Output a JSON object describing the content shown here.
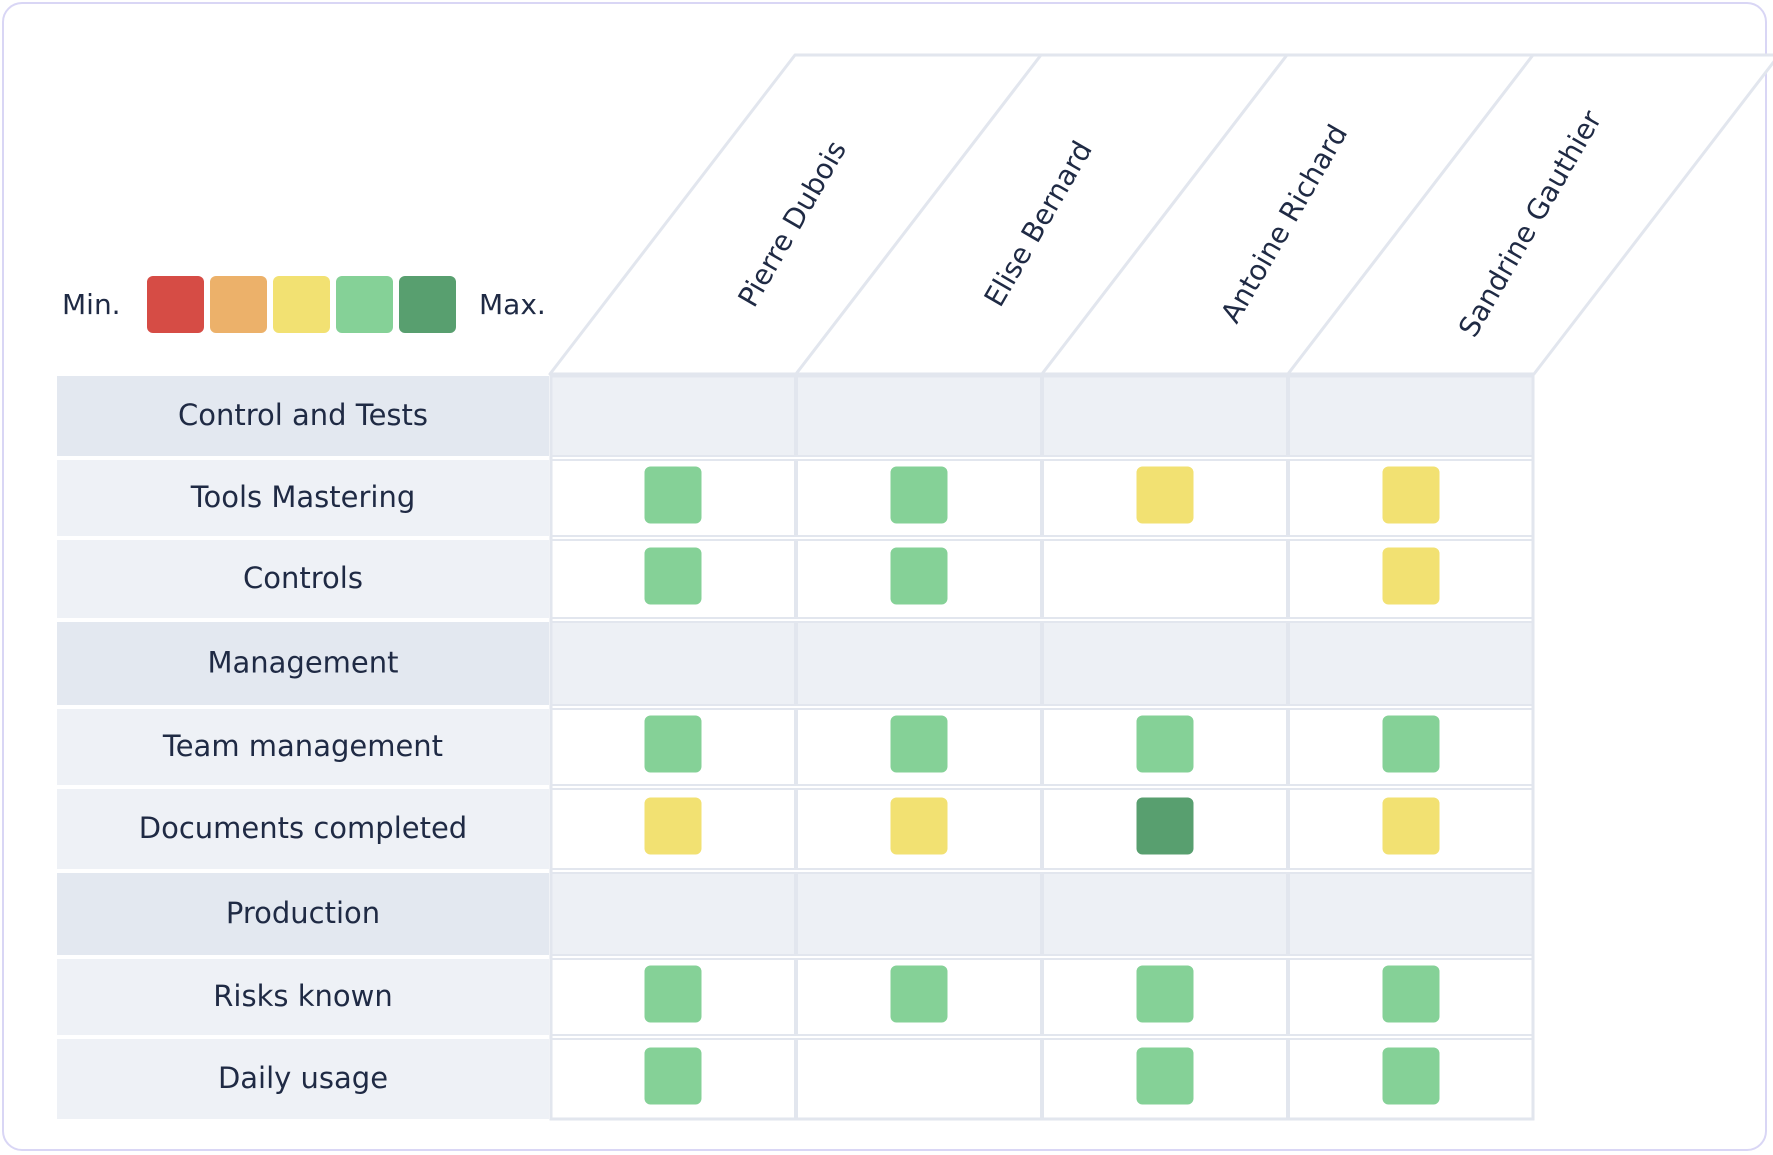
{
  "legend": {
    "min_label": "Min.",
    "max_label": "Max.",
    "scale": [
      {
        "level": 1,
        "color": "#d64c45"
      },
      {
        "level": 2,
        "color": "#ecb16a"
      },
      {
        "level": 3,
        "color": "#f2e172"
      },
      {
        "level": 4,
        "color": "#85d197"
      },
      {
        "level": 5,
        "color": "#589f6f"
      }
    ]
  },
  "chart_data": {
    "type": "heatmap",
    "columns": [
      "Pierre Dubois",
      "Elise Bernard",
      "Antoine Richard",
      "Sandrine Gauthier"
    ],
    "rows": [
      {
        "label": "Control and Tests",
        "section": true,
        "values": [
          null,
          null,
          null,
          null
        ]
      },
      {
        "label": "Tools Mastering",
        "section": false,
        "values": [
          4,
          4,
          3,
          3
        ]
      },
      {
        "label": "Controls",
        "section": false,
        "values": [
          4,
          4,
          null,
          3
        ]
      },
      {
        "label": "Management",
        "section": true,
        "values": [
          null,
          null,
          null,
          null
        ]
      },
      {
        "label": "Team management",
        "section": false,
        "values": [
          4,
          4,
          4,
          4
        ]
      },
      {
        "label": "Documents completed",
        "section": false,
        "values": [
          3,
          3,
          5,
          3
        ]
      },
      {
        "label": "Production",
        "section": true,
        "values": [
          null,
          null,
          null,
          null
        ]
      },
      {
        "label": "Risks known",
        "section": false,
        "values": [
          4,
          4,
          4,
          4
        ]
      },
      {
        "label": "Daily usage",
        "section": false,
        "values": [
          4,
          null,
          4,
          4
        ]
      }
    ],
    "scale_min": 1,
    "scale_max": 5
  }
}
